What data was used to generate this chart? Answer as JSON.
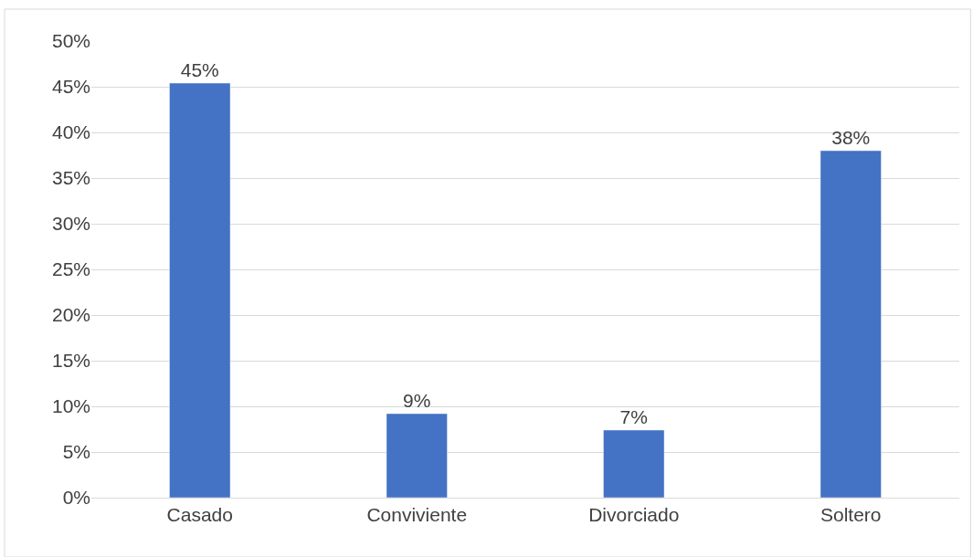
{
  "chart_data": {
    "type": "bar",
    "categories": [
      "Casado",
      "Conviviente",
      "Divorciado",
      "Soltero"
    ],
    "values": [
      45.4,
      9.2,
      7.4,
      38.0
    ],
    "value_labels": [
      "45%",
      "9%",
      "7%",
      "38%"
    ],
    "color": "#4472c4",
    "ylim": [
      0,
      50
    ],
    "yticks": [
      {
        "value": 0,
        "label": "0%"
      },
      {
        "value": 5,
        "label": "5%"
      },
      {
        "value": 10,
        "label": "10%"
      },
      {
        "value": 15,
        "label": "15%"
      },
      {
        "value": 20,
        "label": "20%"
      },
      {
        "value": 25,
        "label": "25%"
      },
      {
        "value": 30,
        "label": "30%"
      },
      {
        "value": 35,
        "label": "35%"
      },
      {
        "value": 40,
        "label": "40%"
      },
      {
        "value": 45,
        "label": "45%"
      },
      {
        "value": 50,
        "label": "50%"
      }
    ],
    "grid": "y",
    "legend": false
  }
}
